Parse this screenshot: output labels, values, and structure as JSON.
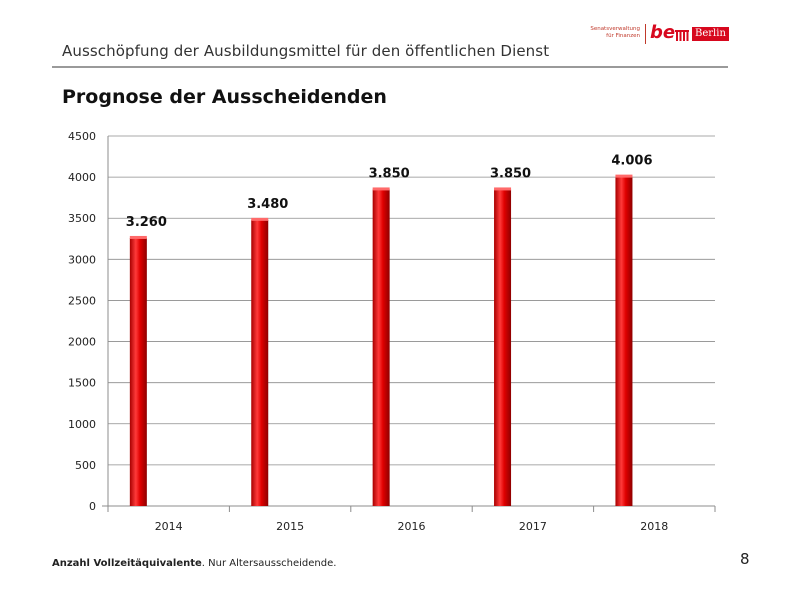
{
  "header": {
    "title": "Ausschöpfung der Ausbildungsmittel für den öffentlichen Dienst",
    "logo_text_line1": "Senatsverwaltung",
    "logo_text_line2": "für Finanzen",
    "logo_be": "be",
    "logo_berlin": "Berlin",
    "brand_color": "#d7081e"
  },
  "chart_data": {
    "type": "bar",
    "title": "Prognose der Ausscheidenden",
    "categories": [
      "2014",
      "2015",
      "2016",
      "2017",
      "2018"
    ],
    "values": [
      3260,
      3480,
      3850,
      3850,
      4006
    ],
    "data_labels": [
      "3.260",
      "3.480",
      "3.850",
      "3.850",
      "4.006"
    ],
    "ylim": [
      0,
      4500
    ],
    "yticks": [
      0,
      500,
      1000,
      1500,
      2000,
      2500,
      3000,
      3500,
      4000,
      4500
    ],
    "grid": true,
    "legend": "none",
    "bar_color": "#e00000"
  },
  "footer": {
    "note_bold": "Anzahl Vollzeitäquivalente",
    "note_rest": ". Nur Altersausscheidende.",
    "page_number": "8"
  }
}
